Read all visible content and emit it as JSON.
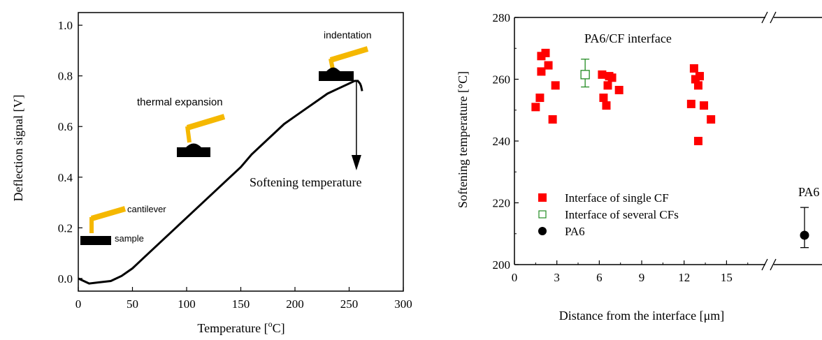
{
  "chart_data": [
    {
      "type": "line",
      "title": "",
      "xlabel": "Temperature [°C]",
      "ylabel": "Deflection signal [V]",
      "xlim": [
        0,
        300
      ],
      "ylim": [
        -0.05,
        1.05
      ],
      "xticks": [
        "0",
        "50",
        "100",
        "150",
        "200",
        "250",
        "300"
      ],
      "yticks": [
        "0.0",
        "0.2",
        "0.4",
        "0.6",
        "0.8",
        "1.0"
      ],
      "grid": false,
      "series": [
        {
          "x": [
            0,
            10,
            20,
            30,
            40,
            50,
            60,
            70,
            80,
            90,
            100,
            110,
            120,
            130,
            140,
            150,
            160,
            170,
            180,
            190,
            200,
            210,
            220,
            230,
            240,
            250,
            255,
            258,
            260,
            261,
            262
          ],
          "y": [
            0.0,
            -0.02,
            -0.015,
            -0.01,
            0.01,
            0.04,
            0.08,
            0.12,
            0.16,
            0.2,
            0.24,
            0.28,
            0.32,
            0.36,
            0.4,
            0.44,
            0.49,
            0.53,
            0.57,
            0.61,
            0.64,
            0.67,
            0.7,
            0.73,
            0.75,
            0.77,
            0.78,
            0.78,
            0.77,
            0.76,
            0.74
          ]
        }
      ],
      "annotations": {
        "sample": "sample",
        "cantilever": "cantilever",
        "thermal_expansion": "thermal expansion",
        "indentation": "indentation",
        "softening": "Softening temperature"
      }
    },
    {
      "type": "scatter",
      "title": "PA6/CF interface",
      "xlabel": "Distance from the interface [μm]",
      "ylabel": "Softening temperature [°C]",
      "xlim": [
        0,
        18
      ],
      "ylim": [
        200,
        280
      ],
      "xticks": [
        "0",
        "3",
        "6",
        "9",
        "12",
        "15"
      ],
      "yticks": [
        "200",
        "220",
        "240",
        "260",
        "280"
      ],
      "axis_break": true,
      "legend_position": "bottom-left",
      "series": [
        {
          "name": "Interface of single CF",
          "color": "#ff0000",
          "marker": "filled-square",
          "points": [
            [
              1.5,
              251
            ],
            [
              1.8,
              254
            ],
            [
              1.9,
              262.5
            ],
            [
              1.9,
              267.5
            ],
            [
              2.2,
              268.5
            ],
            [
              2.4,
              264.5
            ],
            [
              2.7,
              247
            ],
            [
              2.9,
              258
            ],
            [
              6.2,
              261.5
            ],
            [
              6.3,
              254
            ],
            [
              6.5,
              251.5
            ],
            [
              6.6,
              258
            ],
            [
              6.7,
              261
            ],
            [
              6.9,
              260.5
            ],
            [
              7.4,
              256.5
            ],
            [
              12.5,
              252
            ],
            [
              12.7,
              263.5
            ],
            [
              12.8,
              260
            ],
            [
              13.0,
              258
            ],
            [
              13.1,
              261
            ],
            [
              13.0,
              240
            ],
            [
              13.4,
              251.5
            ],
            [
              13.9,
              247
            ]
          ]
        },
        {
          "name": "Interface of several CFs",
          "color": "#228B22",
          "marker": "open-square",
          "points": [
            [
              5.0,
              261.5
            ]
          ],
          "error": [
            [
              257.5,
              266.5
            ]
          ]
        },
        {
          "name": "PA6",
          "color": "#000000",
          "marker": "filled-circle",
          "points": [
            [
              18,
              209.5
            ]
          ],
          "error": [
            [
              205.5,
              218.5
            ]
          ]
        }
      ],
      "annotations": {
        "pa6_label": "PA6"
      }
    }
  ]
}
